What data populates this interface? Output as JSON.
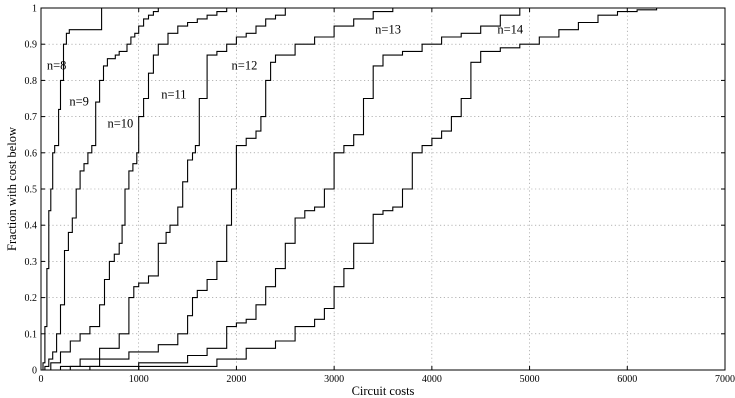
{
  "chart_data": {
    "type": "line",
    "title": "",
    "xlabel": "Circuit costs",
    "ylabel": "Fraction with cost below",
    "xlim": [
      0,
      7000
    ],
    "ylim": [
      0,
      1
    ],
    "xticks": [
      "0",
      "1000",
      "2000",
      "3000",
      "4000",
      "5000",
      "6000",
      "7000"
    ],
    "yticks": [
      "0",
      "0.1",
      "0.2",
      "0.3",
      "0.4",
      "0.5",
      "0.6",
      "0.7",
      "0.8",
      "0.9",
      "1"
    ],
    "grid": true,
    "legend": "none",
    "line_color": "#000000",
    "series": [
      {
        "name": "n=8",
        "label_at": [
          60,
          0.83
        ],
        "x": [
          0,
          20,
          40,
          60,
          80,
          100,
          120,
          140,
          160,
          180,
          200,
          230,
          260,
          290,
          600,
          620
        ],
        "y": [
          0,
          0.02,
          0.12,
          0.28,
          0.44,
          0.5,
          0.6,
          0.62,
          0.62,
          0.72,
          0.8,
          0.9,
          0.93,
          0.94,
          0.94,
          1.0
        ]
      },
      {
        "name": "n=9",
        "label_at": [
          290,
          0.73
        ],
        "x": [
          0,
          40,
          80,
          120,
          160,
          200,
          240,
          280,
          320,
          360,
          400,
          440,
          480,
          520,
          560,
          600,
          640,
          680,
          720,
          760,
          800,
          840,
          880,
          920,
          960,
          1000,
          1050,
          1100,
          1150,
          1200
        ],
        "y": [
          0,
          0.01,
          0.03,
          0.05,
          0.1,
          0.18,
          0.33,
          0.38,
          0.42,
          0.5,
          0.55,
          0.57,
          0.6,
          0.62,
          0.74,
          0.8,
          0.84,
          0.86,
          0.86,
          0.87,
          0.88,
          0.88,
          0.9,
          0.92,
          0.93,
          0.95,
          0.97,
          0.98,
          0.99,
          1.0
        ]
      },
      {
        "name": "n=10",
        "label_at": [
          680,
          0.67
        ],
        "x": [
          0,
          100,
          200,
          300,
          400,
          500,
          600,
          650,
          700,
          750,
          800,
          830,
          860,
          900,
          940,
          980,
          1000,
          1050,
          1100,
          1150,
          1200,
          1300,
          1400,
          1500,
          1600,
          1700,
          1800,
          1900
        ],
        "y": [
          0,
          0.02,
          0.05,
          0.08,
          0.1,
          0.12,
          0.18,
          0.25,
          0.3,
          0.32,
          0.35,
          0.4,
          0.5,
          0.55,
          0.57,
          0.6,
          0.7,
          0.75,
          0.82,
          0.87,
          0.9,
          0.93,
          0.95,
          0.96,
          0.97,
          0.98,
          0.99,
          1.0
        ]
      },
      {
        "name": "n=11",
        "label_at": [
          1230,
          0.75
        ],
        "x": [
          0,
          200,
          400,
          600,
          800,
          900,
          950,
          1000,
          1100,
          1200,
          1280,
          1320,
          1400,
          1450,
          1500,
          1550,
          1580,
          1620,
          1700,
          1800,
          1900,
          2000,
          2100,
          2200,
          2300,
          2400,
          2500
        ],
        "y": [
          0,
          0.01,
          0.03,
          0.06,
          0.1,
          0.2,
          0.23,
          0.24,
          0.26,
          0.35,
          0.38,
          0.4,
          0.45,
          0.52,
          0.58,
          0.6,
          0.62,
          0.75,
          0.87,
          0.88,
          0.9,
          0.92,
          0.93,
          0.95,
          0.97,
          0.98,
          1.0
        ]
      },
      {
        "name": "n=12",
        "label_at": [
          1950,
          0.83
        ],
        "x": [
          0,
          300,
          600,
          900,
          1200,
          1400,
          1500,
          1550,
          1600,
          1700,
          1800,
          1900,
          1950,
          2000,
          2100,
          2200,
          2250,
          2300,
          2350,
          2400,
          2600,
          2800,
          3000,
          3200,
          3400,
          3600
        ],
        "y": [
          0,
          0.01,
          0.03,
          0.05,
          0.07,
          0.1,
          0.15,
          0.2,
          0.22,
          0.25,
          0.3,
          0.4,
          0.5,
          0.62,
          0.64,
          0.66,
          0.7,
          0.8,
          0.85,
          0.87,
          0.9,
          0.92,
          0.95,
          0.97,
          0.99,
          1.0
        ]
      },
      {
        "name": "n=13",
        "label_at": [
          3420,
          0.93
        ],
        "x": [
          0,
          500,
          1000,
          1500,
          1700,
          1900,
          2000,
          2100,
          2200,
          2300,
          2400,
          2500,
          2600,
          2700,
          2800,
          2900,
          3000,
          3100,
          3200,
          3300,
          3400,
          3500,
          3700,
          3900,
          4100,
          4300,
          4500,
          4700,
          4900
        ],
        "y": [
          0,
          0.01,
          0.02,
          0.04,
          0.06,
          0.12,
          0.13,
          0.14,
          0.18,
          0.23,
          0.28,
          0.35,
          0.42,
          0.44,
          0.45,
          0.5,
          0.6,
          0.62,
          0.65,
          0.75,
          0.84,
          0.87,
          0.88,
          0.9,
          0.92,
          0.93,
          0.95,
          0.98,
          1.0
        ]
      },
      {
        "name": "n=14",
        "label_at": [
          4670,
          0.93
        ],
        "x": [
          0,
          1000,
          1800,
          2100,
          2400,
          2600,
          2800,
          2900,
          3000,
          3100,
          3200,
          3400,
          3500,
          3600,
          3700,
          3800,
          3900,
          4000,
          4100,
          4200,
          4300,
          4400,
          4500,
          4700,
          4900,
          5100,
          5300,
          5500,
          5700,
          5900,
          6100,
          6300
        ],
        "y": [
          0,
          0.01,
          0.03,
          0.06,
          0.08,
          0.12,
          0.14,
          0.17,
          0.23,
          0.28,
          0.35,
          0.43,
          0.44,
          0.45,
          0.5,
          0.6,
          0.62,
          0.64,
          0.66,
          0.7,
          0.75,
          0.85,
          0.88,
          0.89,
          0.9,
          0.92,
          0.94,
          0.96,
          0.98,
          0.99,
          0.995,
          1.0
        ]
      }
    ]
  }
}
